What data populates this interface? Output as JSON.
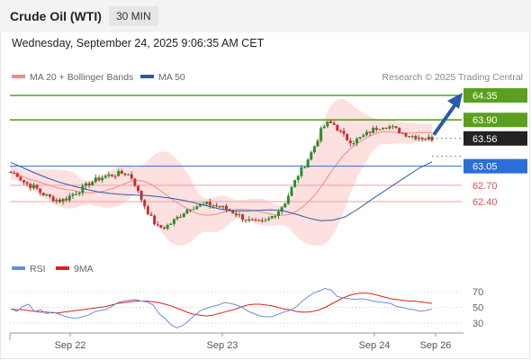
{
  "header": {
    "title": "Crude Oil (WTI)",
    "timeframe": "30 MIN"
  },
  "datetime": "Wednesday, September 24, 2025 9:06:35 AM CET",
  "legend": {
    "ma20": {
      "label": "MA 20 + Bollinger Bands",
      "color": "#f08a8a"
    },
    "ma50": {
      "label": "MA 50",
      "color": "#2a5ba8"
    }
  },
  "copyright": "Research © 2025 Trading Central",
  "rsi_legend": {
    "rsi": {
      "label": "RSI",
      "color": "#6a8de0"
    },
    "ma9": {
      "label": "9MA",
      "color": "#e02020"
    }
  },
  "colors": {
    "up": "#2e8b2e",
    "down": "#c43030",
    "target": "#5aa01e",
    "support": "#2a6fd6",
    "pivot": "#222222",
    "resistance_red": "#e05050"
  },
  "chart_data": {
    "type": "candlestick",
    "x_ticks": [
      "Sep 22",
      "Sep 23",
      "Sep 24",
      "Sep 26"
    ],
    "price_levels": [
      {
        "value": "64.35",
        "style": "target"
      },
      {
        "value": "63.90",
        "style": "target"
      },
      {
        "value": "63.56",
        "style": "pivot"
      },
      {
        "value": "63.05",
        "style": "support"
      },
      {
        "value": "62.70",
        "style": "support2"
      },
      {
        "value": "62.40",
        "style": "support2"
      }
    ],
    "close_path": [
      62.93,
      62.9,
      62.77,
      62.7,
      62.66,
      62.55,
      62.5,
      62.45,
      62.42,
      62.45,
      62.53,
      62.59,
      62.66,
      62.75,
      62.8,
      62.85,
      62.88,
      62.9,
      62.92,
      62.92,
      62.82,
      62.53,
      62.31,
      62.1,
      61.93,
      61.92,
      61.98,
      62.08,
      62.17,
      62.27,
      62.31,
      62.33,
      62.35,
      62.34,
      62.31,
      62.28,
      62.23,
      62.17,
      62.1,
      62.05,
      62.02,
      62.01,
      62.05,
      62.15,
      62.25,
      62.4,
      62.65,
      62.88,
      63.05,
      63.25,
      63.48,
      63.75,
      63.85,
      63.81,
      63.67,
      63.55,
      63.5,
      63.55,
      63.62,
      63.7,
      63.76,
      63.8,
      63.78,
      63.73,
      63.67,
      63.63,
      63.6,
      63.58,
      63.56,
      63.56
    ],
    "ma50_path": [
      63.12,
      63.02,
      62.92,
      62.83,
      62.75,
      62.69,
      62.63,
      62.58,
      62.55,
      62.53,
      62.52,
      62.51,
      62.49,
      62.46,
      62.42,
      62.37,
      62.31,
      62.26,
      62.23,
      62.23,
      62.24,
      62.25,
      62.23,
      62.17,
      62.1,
      62.05,
      62.06,
      62.12,
      62.26,
      62.42,
      62.57,
      62.72,
      62.87,
      63.02,
      63.13
    ],
    "rsi": {
      "ticks": [
        70,
        50,
        30
      ],
      "rsi_path": [
        48,
        45,
        51,
        54,
        45,
        47,
        42,
        44,
        42,
        39,
        37,
        36,
        38,
        40,
        44,
        46,
        47,
        51,
        56,
        58,
        59,
        60,
        58,
        57,
        53,
        42,
        36,
        28,
        24,
        27,
        33,
        40,
        46,
        49,
        51,
        53,
        56,
        55,
        53,
        50,
        45,
        42,
        39,
        38,
        38,
        41,
        44,
        46,
        50,
        57,
        63,
        68,
        71,
        74,
        72,
        64,
        62,
        61,
        60,
        61,
        60,
        58,
        57,
        56,
        55,
        51,
        50,
        48,
        47,
        45,
        46,
        48
      ],
      "ma9_path": [
        48,
        47,
        47,
        46,
        45,
        44,
        44,
        43,
        43,
        44,
        45,
        46,
        47,
        48,
        49,
        50,
        51,
        53,
        55,
        56,
        57,
        58,
        58,
        58,
        57,
        56,
        54,
        52,
        49,
        46,
        43,
        41,
        40,
        39,
        40,
        42,
        44,
        46,
        48,
        51,
        53,
        54,
        54,
        53,
        52,
        50,
        48,
        47,
        45,
        44,
        44,
        45,
        47,
        50,
        54,
        58,
        62,
        65,
        67,
        68,
        68,
        67,
        65,
        63,
        61,
        60,
        59,
        58,
        58,
        57,
        56,
        55
      ]
    }
  }
}
